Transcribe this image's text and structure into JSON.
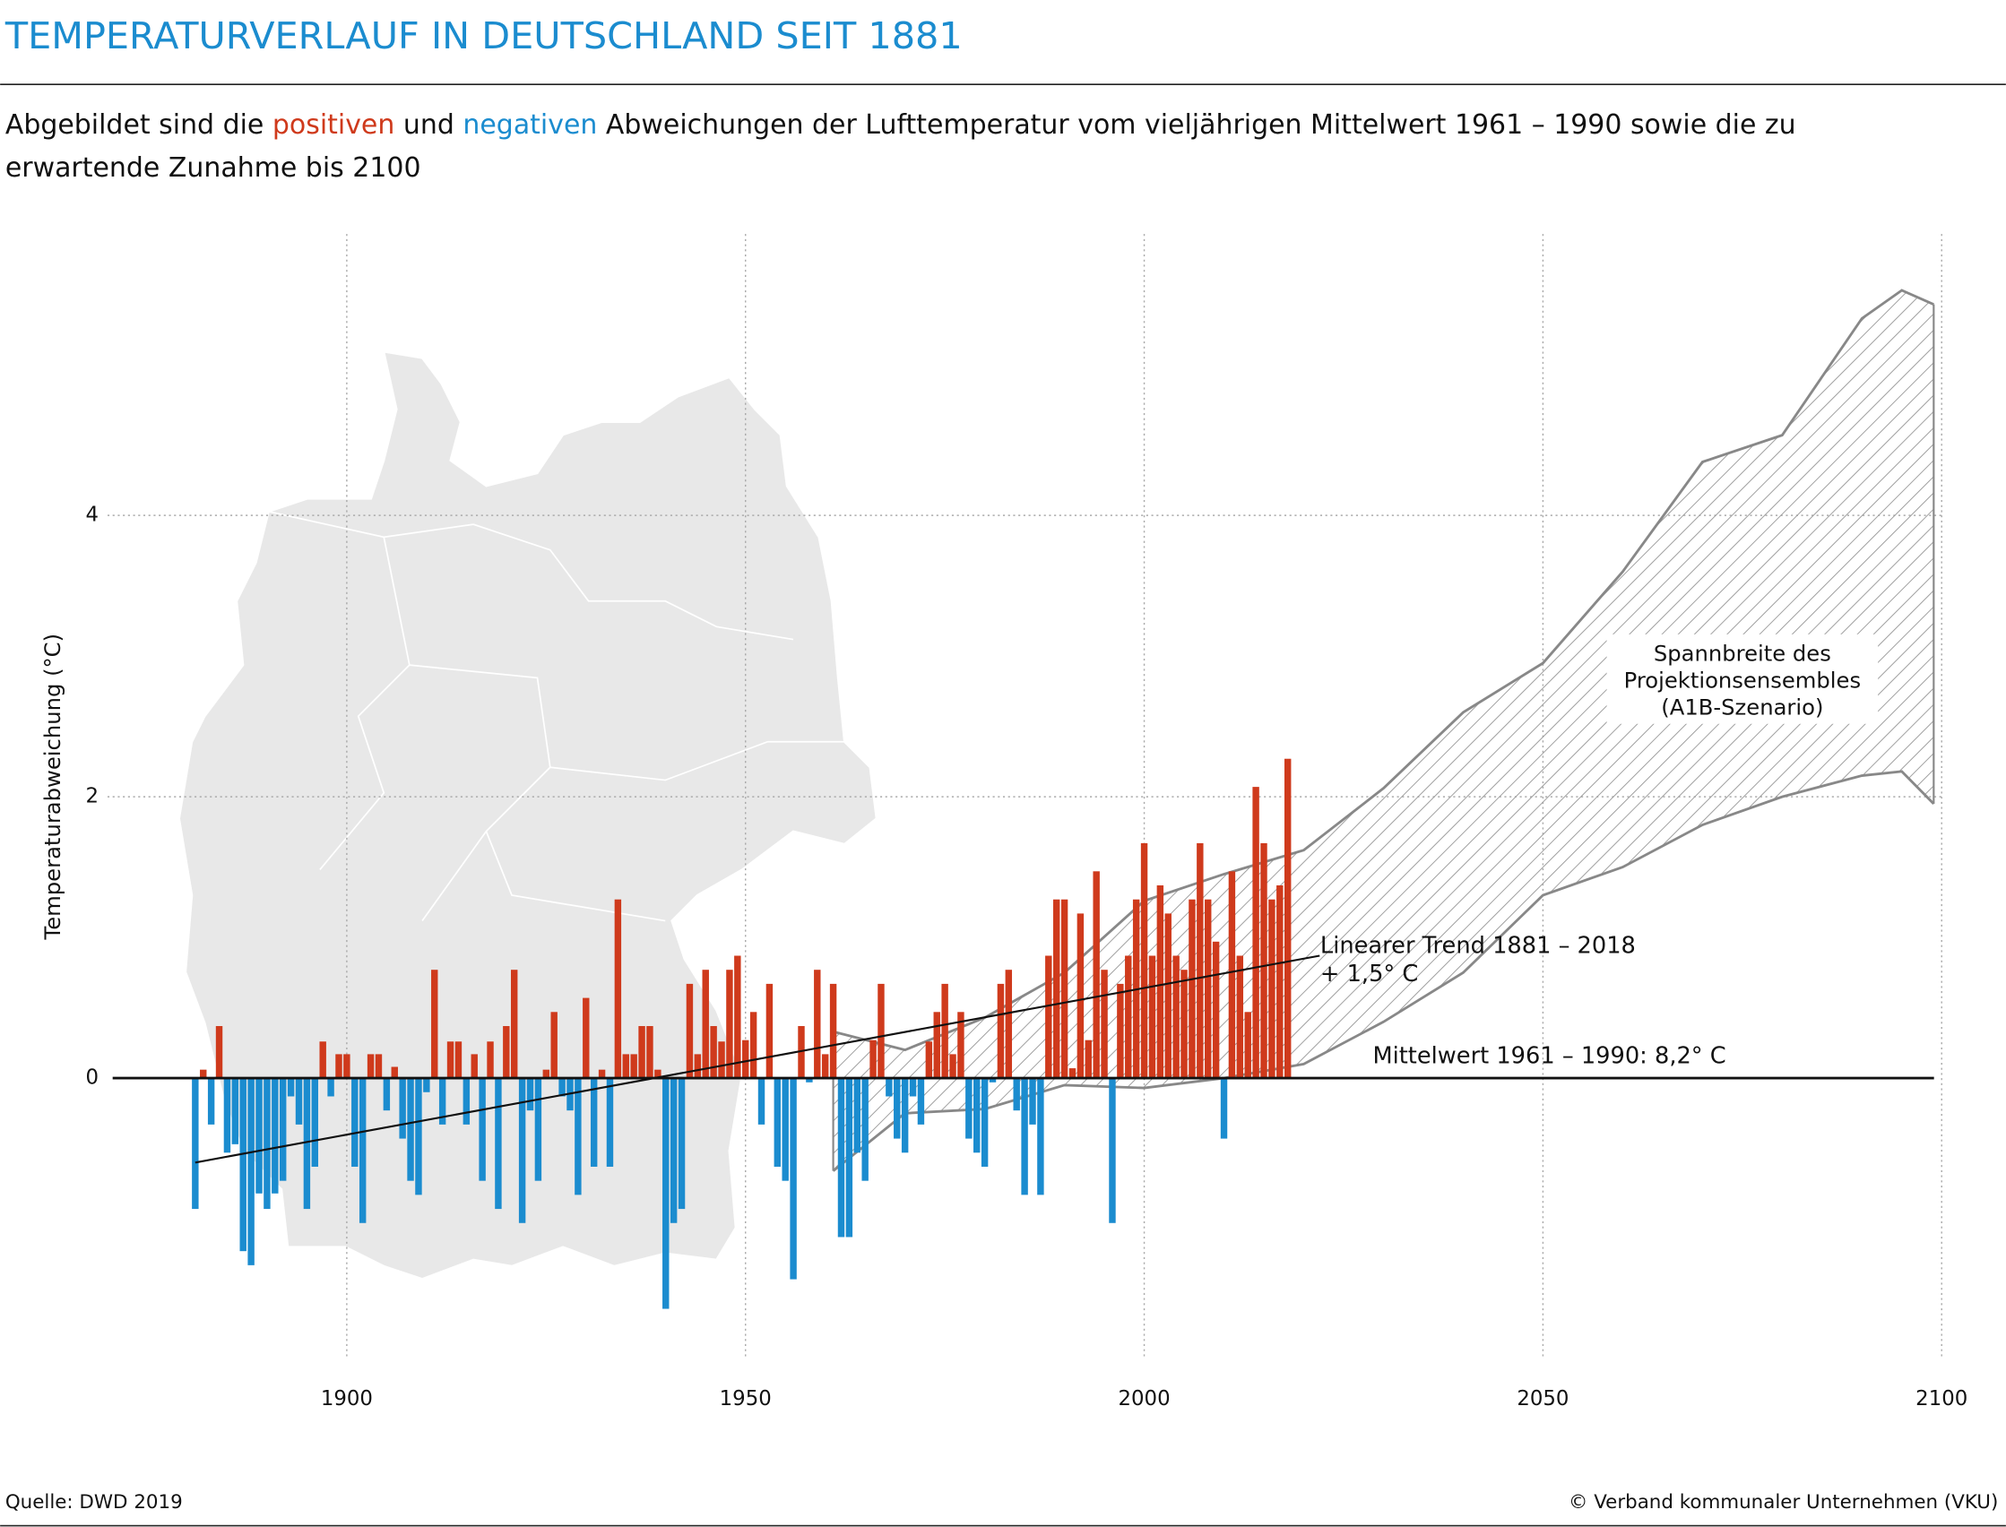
{
  "chart_data": {
    "type": "bar",
    "title": "TEMPERATURVERLAUF IN DEUTSCHLAND SEIT 1881",
    "subtitle": [
      [
        "Abgebildet sind die ",
        "positiven",
        " und ",
        "negativen",
        " Abweichungen der Lufttemperatur vom vieljährigen Mittelwert 1961 – 1990 sowie die zu"
      ],
      [
        "erwartende Zunahme bis 2100"
      ]
    ],
    "y_label": "Temperaturabweichung (°C)",
    "source": "Quelle: DWD 2019",
    "copyright": "© Verband kommunaler Unternehmen (VKU)",
    "colors": {
      "positive": "#cf3a1c",
      "negative": "#1b8ccf",
      "title": "#1b8ccf"
    },
    "xlim": [
      1870,
      2100
    ],
    "xticks": [
      1900,
      1950,
      2000,
      2050,
      2100
    ],
    "ylim": [
      -2,
      6
    ],
    "yticks": [
      0,
      2,
      4
    ],
    "grid": true,
    "x": [
      1881,
      1882,
      1883,
      1884,
      1885,
      1886,
      1887,
      1888,
      1889,
      1890,
      1891,
      1892,
      1893,
      1894,
      1895,
      1896,
      1897,
      1898,
      1899,
      1900,
      1901,
      1902,
      1903,
      1904,
      1905,
      1906,
      1907,
      1908,
      1909,
      1910,
      1911,
      1912,
      1913,
      1914,
      1915,
      1916,
      1917,
      1918,
      1919,
      1920,
      1921,
      1922,
      1923,
      1924,
      1925,
      1926,
      1927,
      1928,
      1929,
      1930,
      1931,
      1932,
      1933,
      1934,
      1935,
      1936,
      1937,
      1938,
      1939,
      1940,
      1941,
      1942,
      1943,
      1944,
      1945,
      1946,
      1947,
      1948,
      1949,
      1950,
      1951,
      1952,
      1953,
      1954,
      1955,
      1956,
      1957,
      1958,
      1959,
      1960,
      1961,
      1962,
      1963,
      1964,
      1965,
      1966,
      1967,
      1968,
      1969,
      1970,
      1971,
      1972,
      1973,
      1974,
      1975,
      1976,
      1977,
      1978,
      1979,
      1980,
      1981,
      1982,
      1983,
      1984,
      1985,
      1986,
      1987,
      1988,
      1989,
      1990,
      1991,
      1992,
      1993,
      1994,
      1995,
      1996,
      1997,
      1998,
      1999,
      2000,
      2001,
      2002,
      2003,
      2004,
      2005,
      2006,
      2007,
      2008,
      2009,
      2010,
      2011,
      2012,
      2013,
      2014,
      2015,
      2016,
      2017,
      2018
    ],
    "values": [
      -0.93,
      0.06,
      -0.33,
      0.37,
      -0.53,
      -0.47,
      -1.23,
      -1.33,
      -0.82,
      -0.93,
      -0.82,
      -0.73,
      -0.13,
      -0.33,
      -0.93,
      -0.63,
      0.26,
      -0.13,
      0.17,
      0.17,
      -0.63,
      -1.03,
      0.17,
      0.17,
      -0.23,
      0.08,
      -0.43,
      -0.73,
      -0.83,
      -0.1,
      0.77,
      -0.33,
      0.26,
      0.26,
      -0.33,
      0.17,
      -0.73,
      0.26,
      -0.93,
      0.37,
      0.77,
      -1.03,
      -0.23,
      -0.73,
      0.06,
      0.47,
      -0.13,
      -0.23,
      -0.83,
      0.57,
      -0.63,
      0.06,
      -0.63,
      1.27,
      0.17,
      0.17,
      0.37,
      0.37,
      0.06,
      -1.64,
      -1.03,
      -0.93,
      0.67,
      0.17,
      0.77,
      0.37,
      0.26,
      0.77,
      0.87,
      0.27,
      0.47,
      -0.33,
      0.67,
      -0.63,
      -0.73,
      -1.43,
      0.37,
      -0.03,
      0.77,
      0.17,
      0.67,
      -1.13,
      -1.13,
      -0.53,
      -0.73,
      0.27,
      0.67,
      -0.13,
      -0.43,
      -0.53,
      -0.13,
      -0.33,
      0.26,
      0.47,
      0.67,
      0.17,
      0.47,
      -0.43,
      -0.53,
      -0.63,
      -0.03,
      0.67,
      0.77,
      -0.23,
      -0.83,
      -0.33,
      -0.83,
      0.87,
      1.27,
      1.27,
      0.07,
      1.17,
      0.27,
      1.47,
      0.77,
      -1.03,
      0.67,
      0.87,
      1.27,
      1.67,
      0.87,
      1.37,
      1.17,
      0.87,
      0.77,
      1.27,
      1.67,
      1.27,
      0.97,
      -0.43,
      1.47,
      0.87,
      0.47,
      2.07,
      1.67,
      1.27,
      1.37,
      2.27
    ],
    "mean_label": "Mittelwert 1961 – 1990: 8,2° C",
    "trend": {
      "x": [
        1881,
        2022
      ],
      "values": [
        -0.6,
        0.87
      ],
      "color": "#111111",
      "label": [
        "Linearer Trend 1881 – 2018",
        "+ 1,5° C"
      ]
    },
    "band": {
      "x": [
        1961,
        1970,
        1980,
        1990,
        2000,
        2010,
        2020,
        2030,
        2040,
        2050,
        2060,
        2070,
        2080,
        2090,
        2095,
        2099
      ],
      "upper": [
        0.33,
        0.2,
        0.43,
        0.75,
        1.26,
        1.45,
        1.62,
        2.06,
        2.6,
        2.95,
        3.6,
        4.38,
        4.57,
        5.4,
        5.6,
        5.5
      ],
      "lower": [
        -0.66,
        -0.25,
        -0.22,
        -0.05,
        -0.07,
        0.0,
        0.1,
        0.4,
        0.75,
        1.3,
        1.5,
        1.8,
        2.0,
        2.15,
        2.18,
        1.95
      ],
      "color": "#888888",
      "label": [
        "Spannbreite des",
        "Projektionsensembles",
        "(A1B-Szenario)"
      ]
    }
  }
}
